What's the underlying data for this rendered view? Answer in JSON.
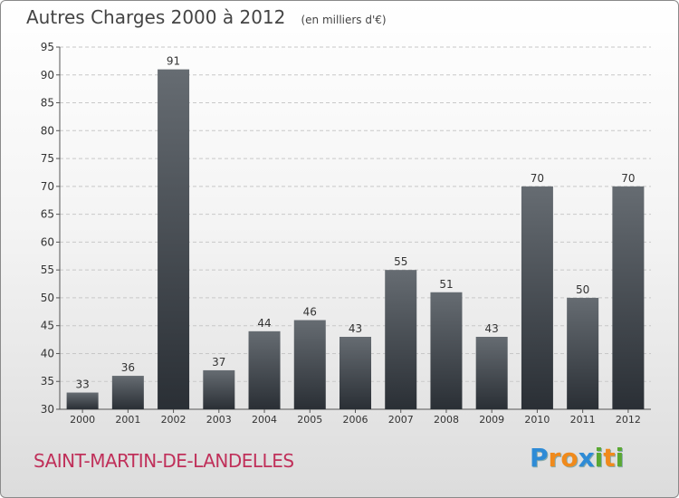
{
  "header": {
    "title": "Autres Charges 2000 à 2012",
    "subtitle": "(en milliers d'€)"
  },
  "commune": "SAINT-MARTIN-DE-LANDELLES",
  "logo": {
    "text": "Proxiti",
    "letters": [
      {
        "ch": "P",
        "color": "#2e8bd6"
      },
      {
        "ch": "r",
        "color": "#f08a1c"
      },
      {
        "ch": "o",
        "color": "#f08a1c"
      },
      {
        "ch": "x",
        "color": "#2e8bd6"
      },
      {
        "ch": "i",
        "color": "#5aa832"
      },
      {
        "ch": "t",
        "color": "#f08a1c"
      },
      {
        "ch": "i",
        "color": "#5aa832"
      }
    ]
  },
  "colors": {
    "bar_top": "#666c72",
    "bar_bottom": "#2a2f35",
    "grid": "#c8c8c8",
    "axis_text": "#333333",
    "title_text": "#444444",
    "commune_text": "#c0305a"
  },
  "chart_data": {
    "type": "bar",
    "categories": [
      "2000",
      "2001",
      "2002",
      "2003",
      "2004",
      "2005",
      "2006",
      "2007",
      "2008",
      "2009",
      "2010",
      "2011",
      "2012"
    ],
    "values": [
      33,
      36,
      91,
      37,
      44,
      46,
      43,
      55,
      51,
      43,
      70,
      50,
      70
    ],
    "ylim": [
      30,
      95
    ],
    "yticks": [
      30,
      35,
      40,
      45,
      50,
      55,
      60,
      65,
      70,
      75,
      80,
      85,
      90,
      95
    ],
    "grid": true
  }
}
